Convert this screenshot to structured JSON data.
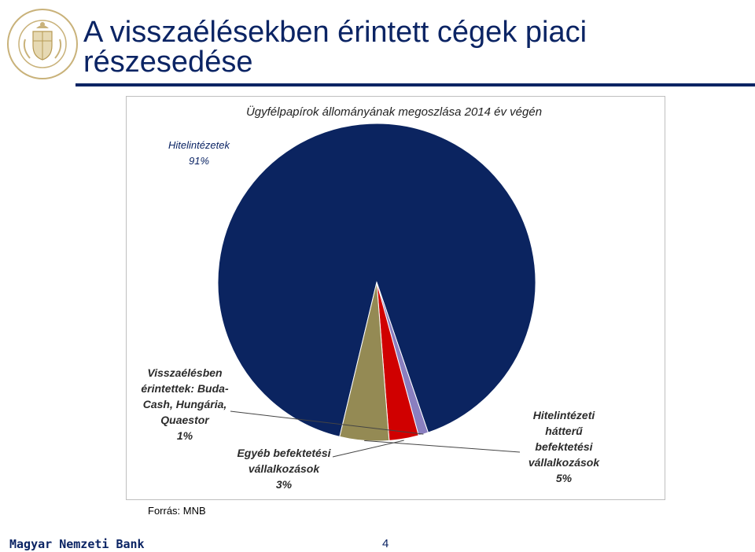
{
  "slide": {
    "title": "A visszaélésekben érintett cégek piaci részesedése",
    "source": "Forrás: MNB",
    "footer_bank": "Magyar Nemzeti Bank",
    "page_number": "4",
    "logo_text": "MAGYAR NEMZETI BANK",
    "colors": {
      "title": "#0b2464",
      "rule": "#0b2464"
    }
  },
  "chart_data": {
    "type": "pie",
    "title": "Ügyfélpapírok állományának megoszlása 2014 év végén",
    "series": [
      {
        "label_lines": [
          "Hitelintézetek",
          "91%"
        ],
        "value": 91,
        "color": "#0b2460"
      },
      {
        "label_lines": [
          "Visszaélésben",
          "érintettek: Buda-",
          "Cash, Hungária,",
          "Quaestor",
          "1%"
        ],
        "value": 1,
        "color": "#8a7fc0"
      },
      {
        "label_lines": [
          "Egyéb befektetési",
          "vállalkozások",
          "3%"
        ],
        "value": 3,
        "color": "#d00000"
      },
      {
        "label_lines": [
          "Hitelintézeti",
          "hátterű",
          "befektetési",
          "vállalkozások",
          "5%"
        ],
        "value": 5,
        "color": "#948a54"
      }
    ]
  }
}
